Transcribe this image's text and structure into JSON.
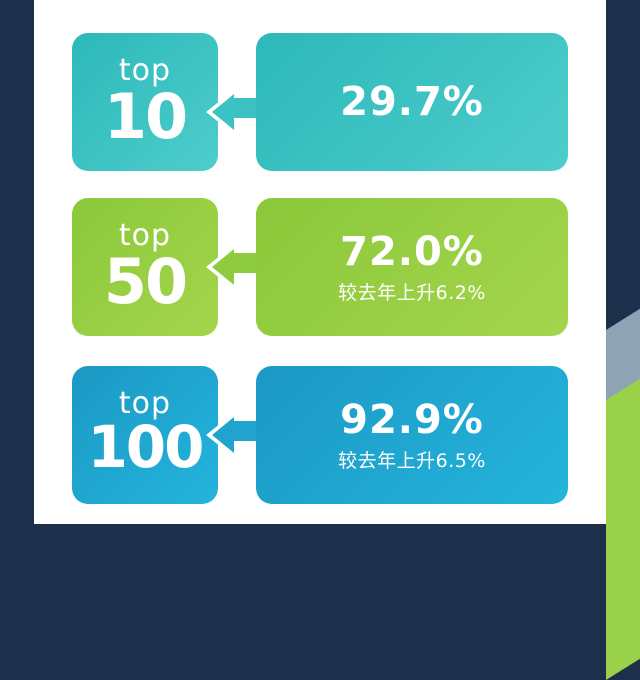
{
  "rows": [
    {
      "top_label": "top",
      "rank": "10",
      "value": "29.7%",
      "note": "",
      "color": "#3cc2c2"
    },
    {
      "top_label": "top",
      "rank": "50",
      "value": "72.0%",
      "note": "较去年上升6.2%",
      "color": "#8fcb3e"
    },
    {
      "top_label": "top",
      "rank": "100",
      "value": "92.9%",
      "note": "较去年上升6.5%",
      "color": "#20a4cf"
    }
  ],
  "colors": {
    "background": "#1d2f4a",
    "panel": "#ffffff",
    "stripe_gray": "#8fa3b5",
    "stripe_green": "#9ad14a"
  }
}
